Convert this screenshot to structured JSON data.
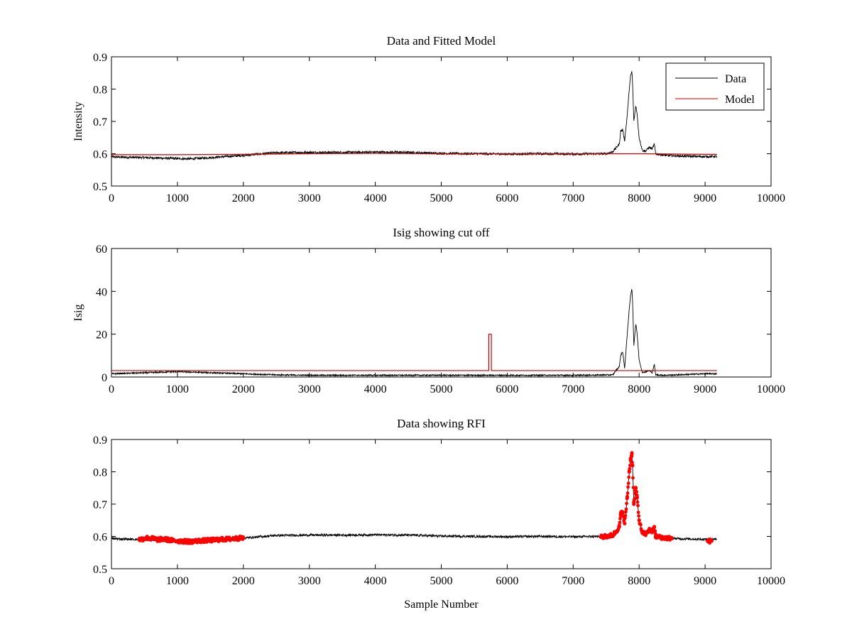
{
  "figure": {
    "background": "#ffffff",
    "data_color": "#000000",
    "model_color": "#cc0000",
    "rfi_color": "#ff0000"
  },
  "chart_data": [
    {
      "type": "line",
      "title": "Data and Fitted Model",
      "xlabel": "",
      "ylabel": "Intensity",
      "xlim": [
        0,
        10000
      ],
      "ylim": [
        0.5,
        0.9
      ],
      "xticks": [
        "0",
        "1000",
        "2000",
        "3000",
        "4000",
        "5000",
        "6000",
        "7000",
        "8000",
        "9000",
        "10000"
      ],
      "yticks": [
        "0.5",
        "0.6",
        "0.7",
        "0.8",
        "0.9"
      ],
      "grid": false,
      "legend": {
        "placement": "top-right",
        "entries": [
          "Data",
          "Model"
        ]
      },
      "series": [
        {
          "name": "Data",
          "color": "#000000",
          "x": [
            0,
            500,
            1000,
            1200,
            1500,
            2000,
            2500,
            3000,
            3500,
            4000,
            4500,
            5000,
            5500,
            6000,
            6500,
            7000,
            7500,
            7600,
            7700,
            7720,
            7750,
            7780,
            7820,
            7850,
            7870,
            7890,
            7900,
            7920,
            7950,
            7970,
            8000,
            8050,
            8100,
            8150,
            8200,
            8230,
            8250,
            8300,
            8400,
            8600,
            8800,
            9000,
            9180
          ],
          "y": [
            0.59,
            0.588,
            0.585,
            0.584,
            0.588,
            0.595,
            0.603,
            0.604,
            0.604,
            0.605,
            0.604,
            0.601,
            0.6,
            0.599,
            0.6,
            0.599,
            0.6,
            0.606,
            0.63,
            0.67,
            0.675,
            0.64,
            0.72,
            0.8,
            0.84,
            0.855,
            0.82,
            0.7,
            0.75,
            0.72,
            0.65,
            0.61,
            0.608,
            0.62,
            0.615,
            0.63,
            0.6,
            0.598,
            0.595,
            0.593,
            0.592,
            0.591,
            0.592
          ]
        },
        {
          "name": "Model",
          "color": "#cc0000",
          "x": [
            0,
            1000,
            2000,
            3000,
            4000,
            5000,
            6000,
            7000,
            8000,
            9000,
            9180
          ],
          "y": [
            0.597,
            0.597,
            0.598,
            0.6,
            0.601,
            0.6,
            0.6,
            0.6,
            0.6,
            0.598,
            0.598
          ]
        }
      ]
    },
    {
      "type": "line",
      "title": "Isig showing cut off",
      "xlabel": "",
      "ylabel": "Isig",
      "xlim": [
        0,
        10000
      ],
      "ylim": [
        0,
        60
      ],
      "xticks": [
        "0",
        "1000",
        "2000",
        "3000",
        "4000",
        "5000",
        "6000",
        "7000",
        "8000",
        "9000",
        "10000"
      ],
      "yticks": [
        "0",
        "20",
        "40",
        "60"
      ],
      "grid": false,
      "series": [
        {
          "color": "#000000",
          "x": [
            0,
            500,
            1000,
            1500,
            2000,
            2500,
            3000,
            4000,
            5000,
            6000,
            7000,
            7600,
            7700,
            7720,
            7750,
            7780,
            7820,
            7850,
            7870,
            7890,
            7900,
            7920,
            7950,
            7970,
            8000,
            8050,
            8150,
            8200,
            8230,
            8250,
            8400,
            9000,
            9180
          ],
          "y": [
            1.5,
            2,
            2.5,
            2,
            1.5,
            1,
            0.8,
            0.8,
            0.8,
            0.8,
            0.8,
            1,
            5,
            10,
            12,
            4,
            20,
            32,
            38,
            41,
            36,
            15,
            25,
            20,
            8,
            2,
            3,
            2,
            6,
            1,
            0.8,
            1.5,
            1.5
          ]
        },
        {
          "color": "#cc0000",
          "x": [
            0,
            5720,
            5720,
            5760,
            5760,
            9180
          ],
          "y": [
            3,
            3,
            20,
            20,
            3,
            3
          ]
        }
      ]
    },
    {
      "type": "line",
      "title": "Data showing RFI",
      "xlabel": "Sample Number",
      "ylabel": "",
      "xlim": [
        0,
        10000
      ],
      "ylim": [
        0.5,
        0.9
      ],
      "xticks": [
        "0",
        "1000",
        "2000",
        "3000",
        "4000",
        "5000",
        "6000",
        "7000",
        "8000",
        "9000",
        "10000"
      ],
      "yticks": [
        "0.5",
        "0.6",
        "0.7",
        "0.8",
        "0.9"
      ],
      "grid": false,
      "series": [
        {
          "color": "#000000",
          "x": [
            0,
            500,
            1000,
            1200,
            1500,
            2000,
            2500,
            3000,
            3500,
            4000,
            4500,
            5000,
            5500,
            6000,
            6500,
            7000,
            7500,
            7600,
            7700,
            7720,
            7750,
            7780,
            7820,
            7850,
            7870,
            7890,
            7900,
            7920,
            7950,
            7970,
            8000,
            8050,
            8100,
            8150,
            8200,
            8230,
            8250,
            8300,
            8400,
            8600,
            8800,
            9000,
            9180
          ],
          "y": [
            0.593,
            0.59,
            0.585,
            0.584,
            0.588,
            0.595,
            0.603,
            0.604,
            0.604,
            0.605,
            0.604,
            0.601,
            0.6,
            0.599,
            0.6,
            0.599,
            0.6,
            0.606,
            0.63,
            0.67,
            0.675,
            0.64,
            0.72,
            0.8,
            0.84,
            0.855,
            0.82,
            0.7,
            0.75,
            0.72,
            0.65,
            0.61,
            0.608,
            0.62,
            0.615,
            0.63,
            0.6,
            0.598,
            0.595,
            0.593,
            0.592,
            0.591,
            0.592
          ]
        },
        {
          "color": "#ff0000",
          "marker": "dot",
          "x": [
            420,
            540,
            650,
            700,
            800,
            900,
            1000,
            1100,
            1200,
            1300,
            1400,
            1500,
            1600,
            1700,
            1800,
            1900,
            2000,
            7420,
            7500,
            7600,
            7650,
            7700,
            7720,
            7750,
            7780,
            7820,
            7850,
            7870,
            7890,
            7900,
            7920,
            7950,
            7970,
            8000,
            8050,
            8100,
            8150,
            8200,
            8230,
            8250,
            8300,
            8400,
            8500,
            9040,
            9100
          ],
          "y": [
            0.59,
            0.595,
            0.593,
            0.59,
            0.592,
            0.588,
            0.586,
            0.585,
            0.584,
            0.586,
            0.587,
            0.588,
            0.59,
            0.591,
            0.592,
            0.594,
            0.595,
            0.598,
            0.6,
            0.604,
            0.615,
            0.63,
            0.67,
            0.675,
            0.64,
            0.72,
            0.8,
            0.84,
            0.855,
            0.82,
            0.7,
            0.75,
            0.72,
            0.65,
            0.61,
            0.608,
            0.62,
            0.615,
            0.63,
            0.6,
            0.598,
            0.595,
            0.594,
            0.585,
            0.586
          ]
        }
      ]
    }
  ]
}
